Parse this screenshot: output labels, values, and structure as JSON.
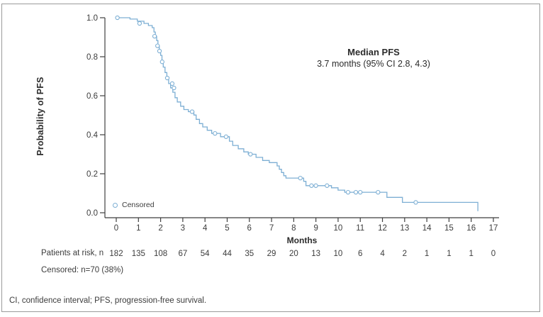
{
  "chart_data": {
    "type": "line",
    "subtype": "kaplan-meier-step",
    "xlabel": "Months",
    "ylabel": "Probability of PFS",
    "xlim": [
      0,
      17
    ],
    "ylim": [
      0.0,
      1.0
    ],
    "x_ticks": [
      0,
      1,
      2,
      3,
      4,
      5,
      6,
      7,
      8,
      9,
      10,
      11,
      12,
      13,
      14,
      15,
      16,
      17
    ],
    "y_ticks": [
      "1.0",
      "0.8",
      "0.6",
      "0.4",
      "0.2",
      "0.0"
    ],
    "grid": false,
    "legend": {
      "label": "Censored",
      "marker": "open-circle",
      "position": "inside-bottom-left"
    },
    "annotation": {
      "title": "Median PFS",
      "subtitle": "3.7 months (95% CI 2.8, 4.3)"
    },
    "series": [
      {
        "name": "PFS",
        "color": "#7dafd4",
        "steps": [
          [
            0.0,
            1.0
          ],
          [
            0.62,
            0.993
          ],
          [
            0.95,
            0.982
          ],
          [
            1.25,
            0.971
          ],
          [
            1.45,
            0.96
          ],
          [
            1.62,
            0.949
          ],
          [
            1.7,
            0.927
          ],
          [
            1.76,
            0.905
          ],
          [
            1.82,
            0.883
          ],
          [
            1.88,
            0.856
          ],
          [
            1.94,
            0.829
          ],
          [
            2.0,
            0.807
          ],
          [
            2.06,
            0.774
          ],
          [
            2.12,
            0.747
          ],
          [
            2.2,
            0.719
          ],
          [
            2.28,
            0.691
          ],
          [
            2.36,
            0.662
          ],
          [
            2.45,
            0.64
          ],
          [
            2.55,
            0.618
          ],
          [
            2.65,
            0.59
          ],
          [
            2.75,
            0.568
          ],
          [
            2.9,
            0.546
          ],
          [
            3.05,
            0.529
          ],
          [
            3.25,
            0.518
          ],
          [
            3.5,
            0.501
          ],
          [
            3.6,
            0.479
          ],
          [
            3.75,
            0.457
          ],
          [
            3.9,
            0.44
          ],
          [
            4.1,
            0.423
          ],
          [
            4.3,
            0.407
          ],
          [
            4.7,
            0.39
          ],
          [
            5.1,
            0.367
          ],
          [
            5.25,
            0.345
          ],
          [
            5.5,
            0.328
          ],
          [
            5.75,
            0.312
          ],
          [
            5.95,
            0.3
          ],
          [
            6.3,
            0.284
          ],
          [
            6.6,
            0.268
          ],
          [
            6.9,
            0.257
          ],
          [
            7.25,
            0.24
          ],
          [
            7.35,
            0.223
          ],
          [
            7.45,
            0.206
          ],
          [
            7.55,
            0.19
          ],
          [
            7.65,
            0.178
          ],
          [
            8.45,
            0.161
          ],
          [
            8.55,
            0.139
          ],
          [
            9.7,
            0.128
          ],
          [
            10.0,
            0.116
          ],
          [
            10.3,
            0.105
          ],
          [
            12.2,
            0.079
          ],
          [
            12.9,
            0.053
          ],
          [
            16.3,
            0.008
          ]
        ],
        "censor_marks": [
          [
            0.05,
            1.0
          ],
          [
            1.05,
            0.971
          ],
          [
            1.73,
            0.905
          ],
          [
            1.86,
            0.856
          ],
          [
            1.95,
            0.829
          ],
          [
            2.07,
            0.774
          ],
          [
            2.3,
            0.691
          ],
          [
            2.52,
            0.662
          ],
          [
            2.6,
            0.64
          ],
          [
            3.42,
            0.518
          ],
          [
            4.45,
            0.407
          ],
          [
            4.95,
            0.39
          ],
          [
            6.05,
            0.3
          ],
          [
            8.3,
            0.178
          ],
          [
            8.8,
            0.139
          ],
          [
            9.0,
            0.139
          ],
          [
            9.5,
            0.139
          ],
          [
            10.45,
            0.105
          ],
          [
            10.8,
            0.105
          ],
          [
            11.0,
            0.105
          ],
          [
            11.8,
            0.105
          ],
          [
            13.5,
            0.053
          ]
        ]
      }
    ],
    "risk_table": {
      "label": "Patients at risk, n",
      "months": [
        0,
        1,
        2,
        3,
        4,
        5,
        6,
        7,
        8,
        9,
        10,
        11,
        12,
        13,
        14,
        15,
        16,
        17
      ],
      "values": [
        "182",
        "135",
        "108",
        "67",
        "54",
        "44",
        "35",
        "29",
        "20",
        "13",
        "10",
        "6",
        "4",
        "2",
        "1",
        "1",
        "1",
        "0"
      ]
    },
    "censored_note": "Censored: n=70 (38%)",
    "footnote": "CI, confidence interval; PFS, progression-free survival."
  },
  "colors": {
    "curve": "#7dafd4",
    "axis": "#3f3f3f",
    "text": "#3c3c3c",
    "frame": "#9a9a9a"
  }
}
